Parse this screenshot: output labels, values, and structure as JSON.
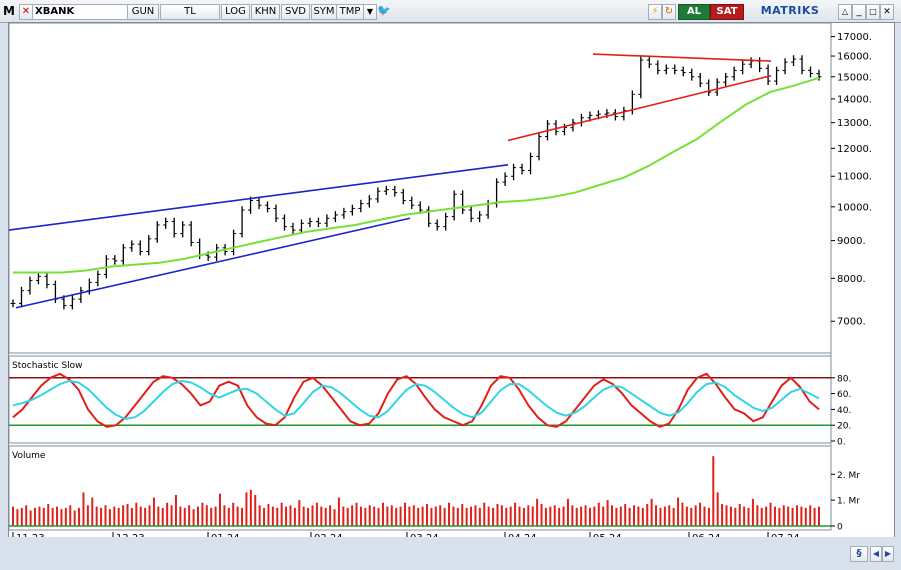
{
  "toolbar": {
    "menu_letter": "M",
    "symbol": "XBANK",
    "period": "GUN",
    "currency": "TL",
    "buttons": [
      "LOG",
      "KHN",
      "SVD",
      "SYM",
      "TMP"
    ],
    "buy_label": "AL",
    "sell_label": "SAT",
    "brand": "MATRIKS",
    "colors": {
      "buy_bg": "#1e7a36",
      "sell_bg": "#b51c1c",
      "accent": "#1c4aa0"
    }
  },
  "x_axis_labels": [
    "11.23",
    "12.23",
    "01.24",
    "02.24",
    "03.24",
    "04.24",
    "05.24",
    "06.24",
    "07.24"
  ],
  "chart_data": [
    {
      "type": "line",
      "panel": "price",
      "series": [
        {
          "style": "ohlc-bars",
          "color": "#000000",
          "values": [
            7400,
            7700,
            7950,
            8050,
            7850,
            7500,
            7350,
            7500,
            7700,
            7900,
            8100,
            8500,
            8450,
            8800,
            8900,
            8700,
            9050,
            9450,
            9550,
            9200,
            9450,
            8950,
            8600,
            8550,
            8800,
            8700,
            9200,
            9900,
            10200,
            10050,
            9950,
            9650,
            9400,
            9300,
            9500,
            9550,
            9500,
            9650,
            9750,
            9850,
            9950,
            10100,
            10250,
            10500,
            10550,
            10450,
            10200,
            10050,
            9900,
            9500,
            9400,
            9700,
            10400,
            9900,
            9650,
            9750,
            10100,
            10800,
            11000,
            11300,
            11200,
            11700,
            12450,
            12950,
            12650,
            12800,
            13000,
            13200,
            13300,
            13350,
            13400,
            13250,
            13500,
            14200,
            15800,
            15600,
            15300,
            15400,
            15300,
            15200,
            15000,
            14700,
            14300,
            14750,
            15000,
            15300,
            15600,
            15750,
            15400,
            14800,
            15300,
            15700,
            15850,
            15300,
            15150,
            15000
          ]
        }
      ],
      "overlays": [
        {
          "name": "",
          "color": "#77e036",
          "values": [
            8150,
            8150,
            8150,
            8200,
            8300,
            8350,
            8400,
            8500,
            8650,
            8800,
            8950,
            9100,
            9250,
            9350,
            9450,
            9600,
            9750,
            9850,
            9950,
            10050,
            10150,
            10200,
            10300,
            10450,
            10700,
            10950,
            11350,
            11850,
            12350,
            13050,
            13750,
            14300,
            14600,
            14950
          ]
        }
      ],
      "trendlines": [
        {
          "color": "#1b24c8",
          "from": [
            "10.23",
            9300
          ],
          "to": [
            "04.24",
            11400
          ]
        },
        {
          "color": "#1b24c8",
          "from": [
            "11.23",
            7300
          ],
          "to": [
            "03.24",
            9650
          ]
        },
        {
          "color": "#e0201a",
          "from": [
            "04.24",
            12300
          ],
          "to": [
            "07.24",
            15050
          ]
        },
        {
          "color": "#e0201a",
          "from": [
            "05.24",
            16100
          ],
          "to": [
            "07.24",
            15750
          ]
        }
      ],
      "y_ticks": [
        7000,
        8000,
        9000,
        10000,
        11000,
        12000,
        13000,
        14000,
        15000,
        16000,
        17000
      ],
      "y_scale": "log",
      "ylim": [
        6500,
        17300
      ],
      "grid": false
    },
    {
      "type": "line",
      "panel": "stochastic",
      "title": "Stochastic Slow",
      "series": [
        {
          "name": "",
          "color": "#e0201a",
          "values": [
            30,
            40,
            55,
            70,
            80,
            85,
            78,
            65,
            40,
            25,
            18,
            20,
            30,
            45,
            60,
            75,
            82,
            80,
            72,
            60,
            45,
            50,
            70,
            75,
            70,
            45,
            30,
            22,
            20,
            30,
            55,
            75,
            80,
            70,
            55,
            40,
            25,
            20,
            22,
            35,
            60,
            78,
            82,
            72,
            55,
            40,
            30,
            25,
            20,
            25,
            45,
            70,
            82,
            80,
            65,
            45,
            30,
            20,
            18,
            25,
            40,
            55,
            70,
            78,
            72,
            60,
            45,
            35,
            25,
            18,
            22,
            40,
            65,
            80,
            85,
            72,
            55,
            40,
            35,
            25,
            30,
            50,
            70,
            80,
            68,
            50,
            40
          ]
        },
        {
          "name": "",
          "color": "#30d6e6",
          "values": [
            45,
            48,
            52,
            58,
            65,
            72,
            76,
            74,
            66,
            54,
            42,
            33,
            28,
            30,
            38,
            50,
            62,
            72,
            76,
            74,
            68,
            60,
            55,
            60,
            65,
            66,
            60,
            50,
            40,
            32,
            35,
            48,
            62,
            70,
            68,
            60,
            50,
            40,
            32,
            30,
            38,
            52,
            65,
            72,
            70,
            62,
            52,
            42,
            34,
            30,
            36,
            50,
            64,
            72,
            72,
            64,
            54,
            44,
            36,
            32,
            36,
            44,
            55,
            65,
            70,
            68,
            60,
            52,
            44,
            36,
            32,
            36,
            48,
            62,
            72,
            74,
            68,
            58,
            50,
            42,
            38,
            42,
            52,
            62,
            66,
            60,
            54
          ]
        }
      ],
      "y_ticks": [
        0,
        20,
        40,
        60,
        80
      ],
      "levels": [
        {
          "value": 80,
          "color": "#8b1010"
        },
        {
          "value": 20,
          "color": "#1f9a2a"
        }
      ],
      "ylim": [
        0,
        100
      ]
    },
    {
      "type": "bar",
      "panel": "volume",
      "title": "Volume",
      "series": [
        {
          "name": "",
          "color": "#e0201a",
          "values": [
            0.75,
            0.65,
            0.7,
            0.8,
            0.6,
            0.7,
            0.75,
            0.7,
            0.85,
            0.7,
            0.75,
            0.65,
            0.7,
            0.8,
            0.6,
            0.7,
            1.3,
            0.8,
            1.1,
            0.75,
            0.7,
            0.8,
            0.65,
            0.75,
            0.7,
            0.8,
            0.85,
            0.7,
            0.9,
            0.75,
            0.7,
            0.8,
            1.1,
            0.75,
            0.7,
            0.9,
            0.8,
            1.2,
            0.75,
            0.7,
            0.8,
            0.65,
            0.75,
            0.9,
            0.8,
            0.7,
            0.75,
            1.25,
            0.8,
            0.7,
            0.9,
            0.75,
            0.7,
            1.3,
            1.4,
            1.2,
            0.8,
            0.7,
            0.85,
            0.75,
            0.7,
            0.9,
            0.75,
            0.8,
            0.7,
            1.0,
            0.75,
            0.7,
            0.8,
            0.9,
            0.75,
            0.7,
            0.8,
            0.65,
            1.1,
            0.75,
            0.7,
            0.8,
            0.9,
            0.75,
            0.7,
            0.8,
            0.75,
            0.7,
            0.9,
            0.75,
            0.8,
            0.7,
            0.75,
            0.9,
            0.75,
            0.8,
            0.7,
            0.75,
            0.85,
            0.7,
            0.75,
            0.8,
            0.7,
            0.9,
            0.75,
            0.7,
            0.85,
            0.7,
            0.75,
            0.8,
            0.7,
            0.9,
            0.75,
            0.7,
            0.85,
            0.8,
            0.7,
            0.75,
            0.9,
            0.75,
            0.7,
            0.8,
            0.75,
            1.05,
            0.85,
            0.7,
            0.75,
            0.8,
            0.7,
            0.75,
            1.05,
            0.8,
            0.7,
            0.75,
            0.8,
            0.7,
            0.75,
            0.9,
            0.75,
            1.0,
            0.8,
            0.7,
            0.75,
            0.85,
            0.7,
            0.8,
            0.75,
            0.7,
            0.85,
            1.05,
            0.8,
            0.7,
            0.75,
            0.8,
            0.7,
            1.1,
            0.9,
            0.75,
            0.7,
            0.8,
            0.9,
            0.75,
            0.7,
            2.7,
            1.3,
            0.85,
            0.8,
            0.75,
            0.7,
            0.85,
            0.75,
            0.7,
            1.05,
            0.8,
            0.7,
            0.75,
            0.9,
            0.75,
            0.7,
            0.8,
            0.75,
            0.7,
            0.8,
            0.75,
            0.7,
            0.8,
            0.7,
            0.75
          ]
        }
      ],
      "y_ticks": [
        "0",
        "1. Mr",
        "2. Mr"
      ],
      "ylim": [
        0,
        2.9
      ]
    }
  ]
}
